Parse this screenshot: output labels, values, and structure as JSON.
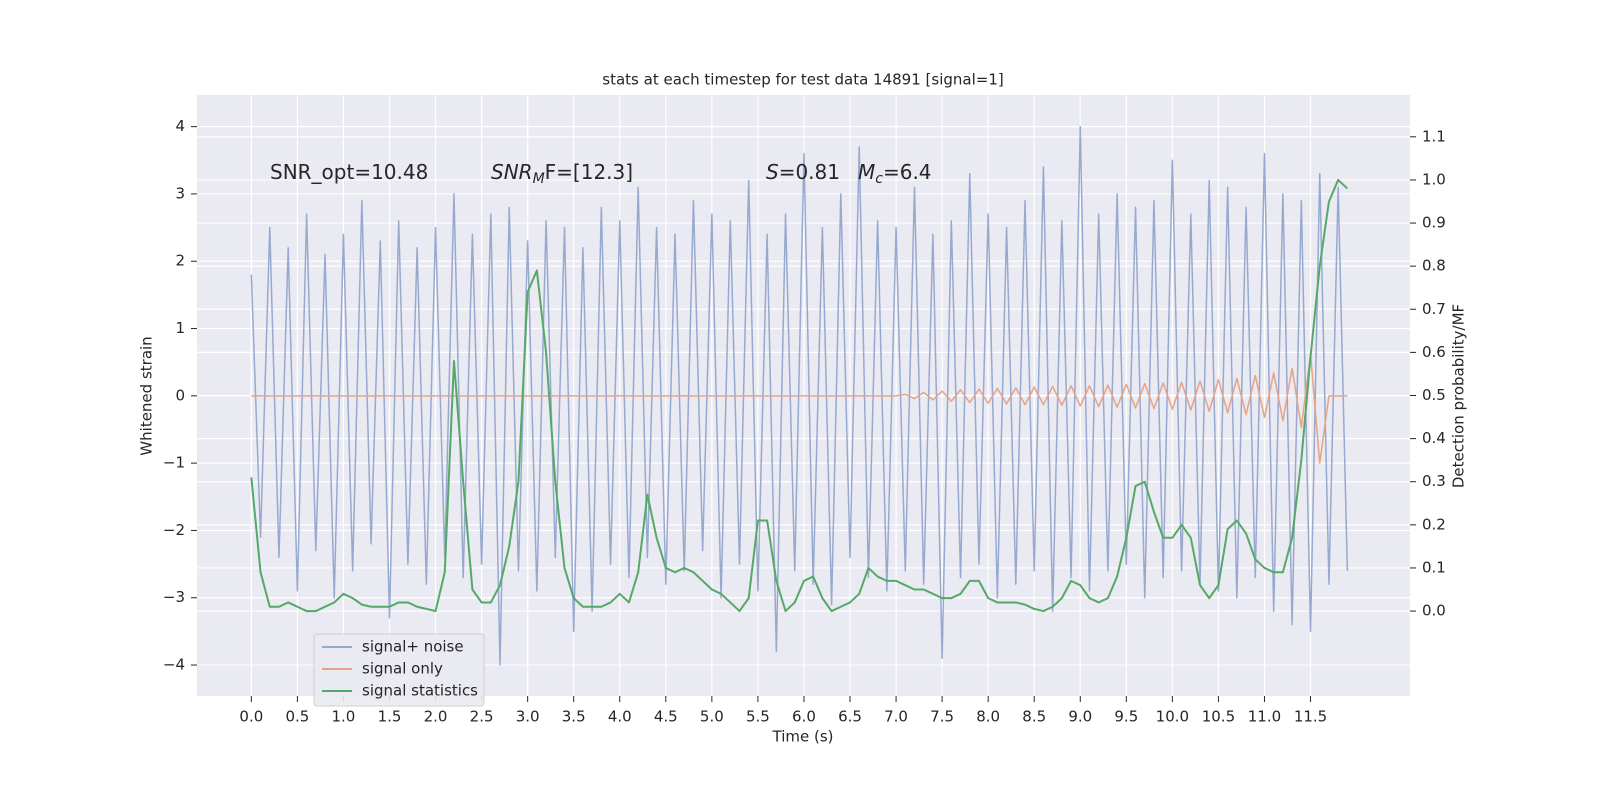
{
  "chart_data": {
    "type": "line",
    "title": "stats at each timestep for test data 14891 [signal=1]",
    "xlabel": "Time (s)",
    "ylabel": "Whitened strain",
    "y2label": "Detection probability/MF",
    "annotations": [
      {
        "text": "SNR_opt=10.48"
      },
      {
        "main": "SNR",
        "sub": "M",
        "tail": "F=[12.3]"
      },
      {
        "main": "S",
        "tail": "=0.81"
      },
      {
        "main": "M",
        "sub": "c",
        "tail": "=6.4"
      }
    ],
    "grid": true,
    "legend": "lower left",
    "xlim": [
      -0.59,
      12.58
    ],
    "ylim": [
      -4.46,
      4.47
    ],
    "y2lim": [
      -0.197,
      1.197
    ],
    "xticks": [
      {
        "value": 0,
        "label": "0.0"
      },
      0.5,
      {
        "value": 1,
        "label": "1.0"
      },
      1.5,
      {
        "value": 2,
        "label": "2.0"
      },
      2.5,
      {
        "value": 3,
        "label": "3.0"
      },
      3.5,
      {
        "value": 4,
        "label": "4.0"
      },
      4.5,
      {
        "value": 5,
        "label": "5.0"
      },
      5.5,
      {
        "value": 6,
        "label": "6.0"
      },
      6.5,
      {
        "value": 7,
        "label": "7.0"
      },
      7.5,
      {
        "value": 8,
        "label": "8.0"
      },
      8.5,
      {
        "value": 9,
        "label": "9.0"
      },
      9.5,
      {
        "value": 10,
        "label": "10.0"
      },
      10.5,
      {
        "value": 11,
        "label": "11.0"
      },
      11.5
    ],
    "yticks": [
      {
        "value": -4,
        "label": "−4"
      },
      {
        "value": -3,
        "label": "−3"
      },
      {
        "value": -2,
        "label": "−2"
      },
      {
        "value": -1,
        "label": "−1"
      },
      0,
      1,
      2,
      3,
      4
    ],
    "y2ticks": [
      {
        "value": 0,
        "label": "0.0"
      },
      0.1,
      0.2,
      0.3,
      0.4,
      0.5,
      0.6,
      0.7,
      0.8,
      0.9,
      {
        "value": 1,
        "label": "1.0"
      },
      1.1
    ],
    "x": [
      0.0,
      0.1,
      0.2,
      0.3,
      0.4,
      0.5,
      0.6,
      0.7,
      0.8,
      0.9,
      1.0,
      1.1,
      1.2,
      1.3,
      1.4,
      1.5,
      1.6,
      1.7,
      1.8,
      1.9,
      2.0,
      2.1,
      2.2,
      2.3,
      2.4,
      2.5,
      2.6,
      2.7,
      2.8,
      2.9,
      3.0,
      3.1,
      3.2,
      3.3,
      3.4,
      3.5,
      3.6,
      3.7,
      3.8,
      3.9,
      4.0,
      4.1,
      4.2,
      4.3,
      4.4,
      4.5,
      4.6,
      4.7,
      4.8,
      4.9,
      5.0,
      5.1,
      5.2,
      5.3,
      5.4,
      5.5,
      5.6,
      5.7,
      5.8,
      5.9,
      6.0,
      6.1,
      6.2,
      6.3,
      6.4,
      6.5,
      6.6,
      6.7,
      6.8,
      6.9,
      7.0,
      7.1,
      7.2,
      7.3,
      7.4,
      7.5,
      7.6,
      7.7,
      7.8,
      7.9,
      8.0,
      8.1,
      8.2,
      8.3,
      8.4,
      8.5,
      8.6,
      8.7,
      8.8,
      8.9,
      9.0,
      9.1,
      9.2,
      9.3,
      9.4,
      9.5,
      9.6,
      9.7,
      9.8,
      9.9,
      10.0,
      10.1,
      10.2,
      10.3,
      10.4,
      10.5,
      10.6,
      10.7,
      10.8,
      10.9,
      11.0,
      11.1,
      11.2,
      11.3,
      11.4,
      11.5,
      11.6,
      11.7,
      11.8,
      11.9
    ],
    "series": [
      {
        "name": "signal+ noise",
        "color": "#98a9d0",
        "axis": "y",
        "values": [
          1.8,
          -2.1,
          2.5,
          -2.4,
          2.2,
          -2.9,
          2.7,
          -2.3,
          2.1,
          -3.0,
          2.4,
          -2.6,
          2.9,
          -2.2,
          2.3,
          -3.3,
          2.6,
          -2.5,
          2.2,
          -2.8,
          2.5,
          -2.4,
          3.0,
          -2.7,
          2.4,
          -2.5,
          2.7,
          -4.0,
          2.8,
          -2.6,
          2.3,
          -2.9,
          2.6,
          -2.4,
          2.5,
          -3.5,
          2.2,
          -3.2,
          2.8,
          -2.5,
          2.6,
          -2.7,
          3.1,
          -2.4,
          2.5,
          -2.8,
          2.4,
          -2.6,
          2.9,
          -2.3,
          2.7,
          -3.0,
          2.6,
          -2.5,
          3.2,
          -2.9,
          2.4,
          -3.8,
          2.7,
          -2.6,
          3.6,
          -2.8,
          2.5,
          -3.1,
          3.0,
          -2.4,
          3.7,
          -2.7,
          2.6,
          -2.9,
          2.5,
          -2.6,
          3.1,
          -2.8,
          2.4,
          -3.9,
          2.6,
          -2.7,
          3.3,
          -2.5,
          2.7,
          -3.0,
          2.5,
          -2.8,
          2.9,
          -2.6,
          3.4,
          -3.2,
          2.6,
          -2.7,
          4.0,
          -2.9,
          2.7,
          -2.6,
          3.0,
          -2.5,
          2.8,
          -3.0,
          2.9,
          -2.7,
          3.5,
          -2.6,
          2.7,
          -2.8,
          3.2,
          -2.9,
          3.1,
          -3.0,
          2.8,
          -2.7,
          3.6,
          -3.2,
          3.0,
          -3.4,
          2.9,
          -3.5,
          3.3,
          -2.8,
          3.1,
          -2.6
        ]
      },
      {
        "name": "signal only",
        "color": "#e6a386",
        "axis": "y",
        "values": [
          0,
          0,
          0,
          0,
          0,
          0,
          0,
          0,
          0,
          0,
          0,
          0,
          0,
          0,
          0,
          0,
          0,
          0,
          0,
          0,
          0,
          0,
          0,
          0,
          0,
          0,
          0,
          0,
          0,
          0,
          0,
          0,
          0,
          0,
          0,
          0,
          0,
          0,
          0,
          0,
          0,
          0,
          0,
          0,
          0,
          0,
          0,
          0,
          0,
          0,
          0,
          0,
          0,
          0,
          0,
          0,
          0,
          0,
          0,
          0,
          0,
          0,
          0,
          0,
          0,
          0,
          0,
          0,
          0,
          0,
          0,
          0.02,
          -0.04,
          0.05,
          -0.06,
          0.07,
          -0.08,
          0.09,
          -0.1,
          0.1,
          -0.11,
          0.11,
          -0.12,
          0.12,
          -0.13,
          0.13,
          -0.13,
          0.14,
          -0.14,
          0.15,
          -0.15,
          0.15,
          -0.16,
          0.16,
          -0.17,
          0.17,
          -0.18,
          0.18,
          -0.19,
          0.19,
          -0.2,
          0.2,
          -0.21,
          0.22,
          -0.23,
          0.24,
          -0.25,
          0.26,
          -0.28,
          0.3,
          -0.32,
          0.34,
          -0.37,
          0.41,
          -0.47,
          0.62,
          -1.0,
          0,
          0,
          0
        ]
      },
      {
        "name": "signal statistics",
        "color": "#55a868",
        "axis": "y2",
        "values": [
          0.31,
          0.09,
          0.01,
          0.01,
          0.02,
          0.01,
          0.0,
          0.0,
          0.01,
          0.02,
          0.04,
          0.03,
          0.015,
          0.01,
          0.01,
          0.01,
          0.02,
          0.02,
          0.01,
          0.005,
          0.0,
          0.09,
          0.58,
          0.3,
          0.05,
          0.02,
          0.02,
          0.06,
          0.15,
          0.3,
          0.74,
          0.79,
          0.6,
          0.3,
          0.1,
          0.03,
          0.01,
          0.01,
          0.01,
          0.02,
          0.04,
          0.02,
          0.09,
          0.27,
          0.17,
          0.1,
          0.09,
          0.1,
          0.09,
          0.07,
          0.05,
          0.04,
          0.02,
          0.0,
          0.03,
          0.21,
          0.21,
          0.07,
          0.0,
          0.02,
          0.07,
          0.08,
          0.03,
          0.0,
          0.01,
          0.02,
          0.04,
          0.1,
          0.08,
          0.07,
          0.07,
          0.06,
          0.05,
          0.05,
          0.04,
          0.03,
          0.03,
          0.04,
          0.07,
          0.07,
          0.03,
          0.02,
          0.02,
          0.02,
          0.015,
          0.005,
          0.0,
          0.01,
          0.03,
          0.07,
          0.06,
          0.03,
          0.02,
          0.03,
          0.08,
          0.17,
          0.29,
          0.3,
          0.23,
          0.17,
          0.17,
          0.2,
          0.17,
          0.06,
          0.03,
          0.06,
          0.19,
          0.21,
          0.18,
          0.12,
          0.1,
          0.09,
          0.09,
          0.17,
          0.35,
          0.59,
          0.8,
          0.95,
          1.0,
          0.98
        ]
      }
    ]
  }
}
